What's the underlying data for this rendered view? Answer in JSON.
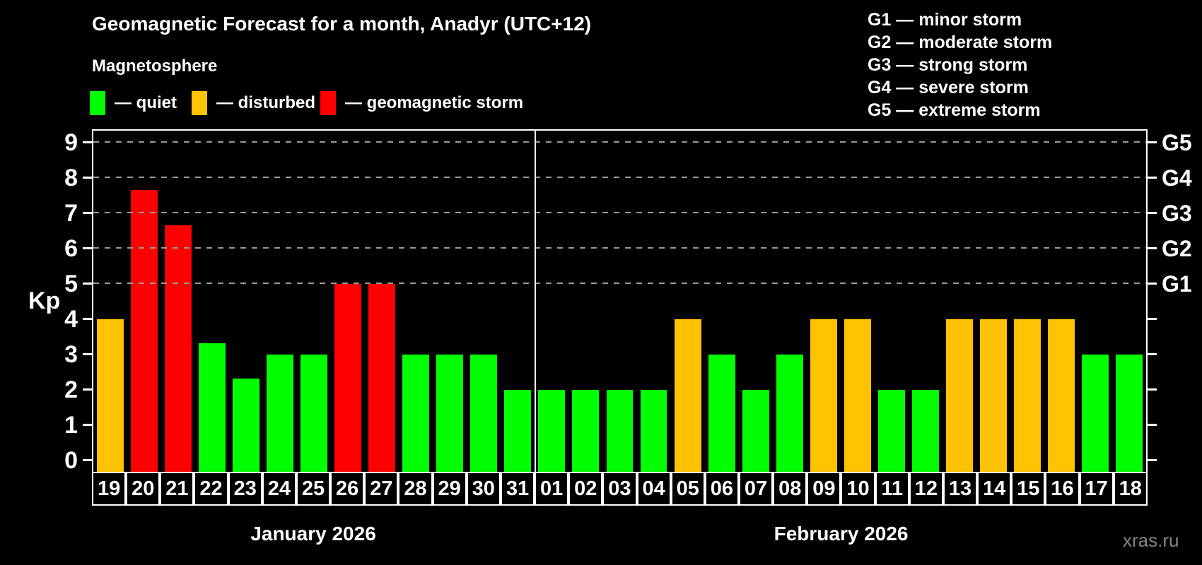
{
  "title": "Geomagnetic Forecast for a month, Anadyr (UTC+12)",
  "subtitle": "Magnetosphere",
  "legend": {
    "items": [
      {
        "label": "— quiet",
        "status": "quiet",
        "color": "#00ff00"
      },
      {
        "label": "— disturbed",
        "status": "disturbed",
        "color": "#ffc200"
      },
      {
        "label": "— geomagnetic storm",
        "status": "storm",
        "color": "#ff0000"
      }
    ]
  },
  "g_legend": {
    "lines": [
      "G1 — minor storm",
      "G2 — moderate storm",
      "G3 — strong storm",
      "G4 — severe storm",
      "G5 — extreme storm"
    ]
  },
  "watermark": "xras.ru",
  "chart_data": {
    "type": "bar",
    "title": "Geomagnetic Forecast for a month, Anadyr (UTC+12)",
    "xlabel": "",
    "ylabel": "Kp",
    "ylim": [
      0,
      9.4
    ],
    "grid": "dashed horizontal at Kp 5-9",
    "yticks": [
      0,
      1,
      2,
      3,
      4,
      5,
      6,
      7,
      8,
      9
    ],
    "gridlines_at": [
      5,
      6,
      7,
      8,
      9
    ],
    "right_axis_labels": [
      {
        "kp": 5,
        "label": "G1"
      },
      {
        "kp": 6,
        "label": "G2"
      },
      {
        "kp": 7,
        "label": "G3"
      },
      {
        "kp": 8,
        "label": "G4"
      },
      {
        "kp": 9,
        "label": "G5"
      }
    ],
    "months": [
      {
        "label": "January 2026",
        "days": 13
      },
      {
        "label": "February 2026",
        "days": 18
      }
    ],
    "categories": [
      "19",
      "20",
      "21",
      "22",
      "23",
      "24",
      "25",
      "26",
      "27",
      "28",
      "29",
      "30",
      "31",
      "01",
      "02",
      "03",
      "04",
      "05",
      "06",
      "07",
      "08",
      "09",
      "10",
      "11",
      "12",
      "13",
      "14",
      "15",
      "16",
      "17",
      "18"
    ],
    "values": [
      4,
      7.67,
      6.67,
      3.33,
      2.33,
      3,
      3,
      5,
      5,
      3,
      3,
      3,
      2,
      2,
      2,
      2,
      2,
      4,
      3,
      2,
      3,
      4,
      4,
      2,
      2,
      4,
      4,
      4,
      4,
      3,
      3
    ],
    "statuses": [
      "disturbed",
      "storm",
      "storm",
      "quiet",
      "quiet",
      "quiet",
      "quiet",
      "storm",
      "storm",
      "quiet",
      "quiet",
      "quiet",
      "quiet",
      "quiet",
      "quiet",
      "quiet",
      "quiet",
      "disturbed",
      "quiet",
      "quiet",
      "quiet",
      "disturbed",
      "disturbed",
      "quiet",
      "quiet",
      "disturbed",
      "disturbed",
      "disturbed",
      "disturbed",
      "quiet",
      "quiet"
    ],
    "colors": {
      "quiet": "#00ff00",
      "disturbed": "#ffc200",
      "storm": "#ff0000"
    },
    "axis_color": "#ffffff",
    "grid_color": "#999999",
    "background": "#000000"
  }
}
